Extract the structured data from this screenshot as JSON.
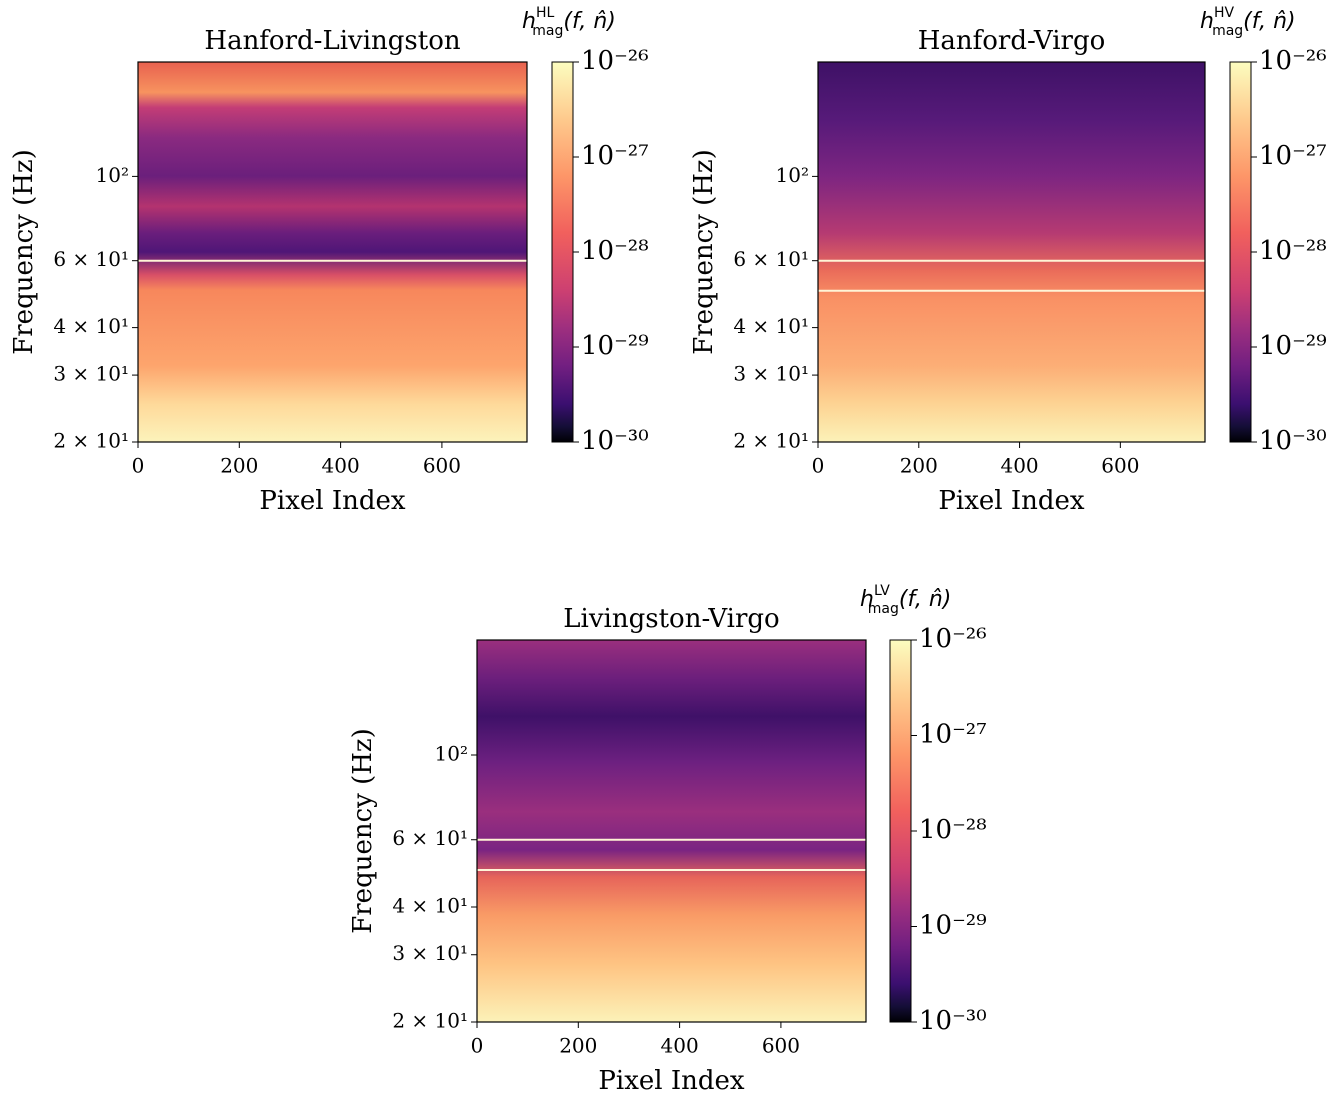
{
  "chart_data": [
    {
      "type": "heatmap",
      "title": "Hanford-Livingston",
      "xlabel": "Pixel Index",
      "ylabel": "Frequency (Hz)",
      "xlim": [
        0,
        768
      ],
      "xticks": [
        0,
        200,
        400,
        600
      ],
      "ylim": [
        20,
        200
      ],
      "log_scale_y": true,
      "yticks": [
        {
          "value": 20,
          "label": "2 × 10¹"
        },
        {
          "value": 30,
          "label": "3 × 10¹"
        },
        {
          "value": 40,
          "label": "4 × 10¹"
        },
        {
          "value": 60,
          "label": "6 × 10¹"
        },
        {
          "value": 100,
          "label": "10²"
        }
      ],
      "lines": [
        60
      ],
      "line_color": "#fff4d6",
      "colorbar": {
        "label": {
          "symbol": "h",
          "superscript": "HL",
          "subscript": "mag",
          "argument": "(f, n̂)"
        },
        "lim": [
          1e-30,
          1e-26
        ],
        "log_scale": true,
        "ticks": [
          {
            "value": 1e-30,
            "label": "10⁻³⁰"
          },
          {
            "value": 1e-29,
            "label": "10⁻²⁹"
          },
          {
            "value": 1e-28,
            "label": "10⁻²⁸"
          },
          {
            "value": 1e-27,
            "label": "10⁻²⁷"
          },
          {
            "value": 1e-26,
            "label": "10⁻²⁶"
          }
        ],
        "colormap": "magma"
      }
    },
    {
      "type": "heatmap",
      "title": "Hanford-Virgo",
      "xlabel": "Pixel Index",
      "ylabel": "Frequency (Hz)",
      "xlim": [
        0,
        768
      ],
      "xticks": [
        0,
        200,
        400,
        600
      ],
      "ylim": [
        20,
        200
      ],
      "log_scale_y": true,
      "yticks": [
        {
          "value": 20,
          "label": "2 × 10¹"
        },
        {
          "value": 30,
          "label": "3 × 10¹"
        },
        {
          "value": 40,
          "label": "4 × 10¹"
        },
        {
          "value": 60,
          "label": "6 × 10¹"
        },
        {
          "value": 100,
          "label": "10²"
        }
      ],
      "lines": [
        60,
        50
      ],
      "line_color": "#fff4d6",
      "colorbar": {
        "label": {
          "symbol": "h",
          "superscript": "HV",
          "subscript": "mag",
          "argument": "(f, n̂)"
        },
        "lim": [
          1e-30,
          1e-26
        ],
        "log_scale": true,
        "ticks": [
          {
            "value": 1e-30,
            "label": "10⁻³⁰"
          },
          {
            "value": 1e-29,
            "label": "10⁻²⁹"
          },
          {
            "value": 1e-28,
            "label": "10⁻²⁸"
          },
          {
            "value": 1e-27,
            "label": "10⁻²⁷"
          },
          {
            "value": 1e-26,
            "label": "10⁻²⁶"
          }
        ],
        "colormap": "magma"
      }
    },
    {
      "type": "heatmap",
      "title": "Livingston-Virgo",
      "xlabel": "Pixel Index",
      "ylabel": "Frequency (Hz)",
      "xlim": [
        0,
        768
      ],
      "xticks": [
        0,
        200,
        400,
        600
      ],
      "ylim": [
        20,
        200
      ],
      "log_scale_y": true,
      "yticks": [
        {
          "value": 20,
          "label": "2 × 10¹"
        },
        {
          "value": 30,
          "label": "3 × 10¹"
        },
        {
          "value": 40,
          "label": "4 × 10¹"
        },
        {
          "value": 60,
          "label": "6 × 10¹"
        },
        {
          "value": 100,
          "label": "10²"
        }
      ],
      "lines": [
        60,
        50
      ],
      "line_color": "#fff4d6",
      "colorbar": {
        "label": {
          "symbol": "h",
          "superscript": "LV",
          "subscript": "mag",
          "argument": "(f, n̂)"
        },
        "lim": [
          1e-30,
          1e-26
        ],
        "log_scale": true,
        "ticks": [
          {
            "value": 1e-30,
            "label": "10⁻³⁰"
          },
          {
            "value": 1e-29,
            "label": "10⁻²⁹"
          },
          {
            "value": 1e-28,
            "label": "10⁻²⁸"
          },
          {
            "value": 1e-27,
            "label": "10⁻²⁷"
          },
          {
            "value": 1e-26,
            "label": "10⁻²⁶"
          }
        ],
        "colormap": "magma"
      }
    }
  ]
}
